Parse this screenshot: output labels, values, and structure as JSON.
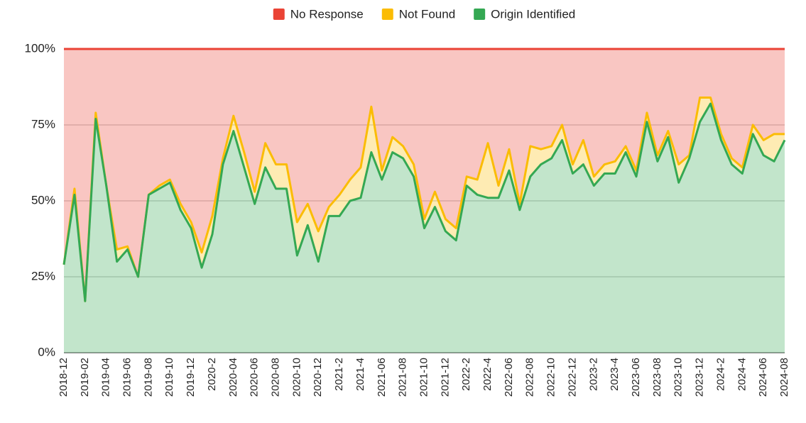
{
  "chart_data": {
    "type": "stacked_area",
    "categories": [
      "2018-12",
      null,
      "2019-02",
      null,
      "2019-04",
      null,
      "2019-06",
      null,
      "2019-08",
      null,
      "2019-10",
      null,
      "2019-12",
      null,
      "2020-2",
      null,
      "2020-04",
      null,
      "2020-06",
      null,
      "2020-08",
      null,
      "2020-10",
      null,
      "2020-12",
      null,
      "2021-2",
      null,
      "2021-4",
      null,
      "2021-06",
      null,
      "2021-08",
      null,
      "2021-10",
      null,
      "2021-12",
      null,
      "2022-2",
      null,
      "2022-4",
      null,
      "2022-06",
      null,
      "2022-08",
      null,
      "2022-10",
      null,
      "2022-12",
      null,
      "2023-2",
      null,
      "2023-4",
      null,
      "2023-06",
      null,
      "2023-08",
      null,
      "2023-10",
      null,
      "2023-12",
      null,
      "2024-2",
      null,
      "2024-4",
      null,
      "2024-06",
      null,
      "2024-08"
    ],
    "series": [
      {
        "name": "No Response",
        "color": "#ea4335",
        "values": [
          71,
          46,
          83,
          21,
          45,
          66,
          65,
          75,
          48,
          45,
          43,
          51,
          57,
          67,
          55,
          36,
          22,
          34,
          47,
          31,
          38,
          38,
          57,
          51,
          60,
          52,
          48,
          43,
          39,
          19,
          40,
          29,
          32,
          38,
          56,
          47,
          56,
          59,
          42,
          43,
          31,
          45,
          33,
          51,
          32,
          33,
          32,
          25,
          38,
          30,
          42,
          38,
          37,
          32,
          40,
          21,
          35,
          27,
          38,
          35,
          16,
          16,
          28,
          36,
          39,
          25,
          30,
          28,
          28
        ]
      },
      {
        "name": "Not Found",
        "color": "#fbbc04",
        "values": [
          0,
          2,
          0,
          2,
          0,
          4,
          1,
          0,
          0,
          1,
          1,
          2,
          2,
          5,
          6,
          2,
          5,
          5,
          4,
          8,
          8,
          8,
          11,
          7,
          10,
          3,
          7,
          7,
          10,
          15,
          3,
          5,
          4,
          4,
          3,
          5,
          4,
          4,
          3,
          5,
          18,
          4,
          7,
          2,
          10,
          5,
          4,
          5,
          3,
          8,
          3,
          3,
          4,
          2,
          2,
          3,
          2,
          2,
          6,
          1,
          8,
          2,
          2,
          2,
          2,
          3,
          5,
          9,
          2
        ]
      },
      {
        "name": "Origin Identified",
        "color": "#34a853",
        "values": [
          29,
          52,
          17,
          77,
          55,
          30,
          34,
          25,
          52,
          54,
          56,
          47,
          41,
          28,
          39,
          62,
          73,
          61,
          49,
          61,
          54,
          54,
          32,
          42,
          30,
          45,
          45,
          50,
          51,
          66,
          57,
          66,
          64,
          58,
          41,
          48,
          40,
          37,
          55,
          52,
          51,
          51,
          60,
          47,
          58,
          62,
          64,
          70,
          59,
          62,
          55,
          59,
          59,
          66,
          58,
          76,
          63,
          71,
          56,
          64,
          76,
          82,
          70,
          62,
          59,
          72,
          65,
          63,
          70
        ]
      }
    ],
    "ylim": [
      0,
      100
    ],
    "yticks": [
      {
        "value": 0,
        "label": "0%"
      },
      {
        "value": 25,
        "label": "25%"
      },
      {
        "value": 50,
        "label": "50%"
      },
      {
        "value": 75,
        "label": "75%"
      },
      {
        "value": 100,
        "label": "100%"
      }
    ],
    "grid": true,
    "legend": "top"
  }
}
